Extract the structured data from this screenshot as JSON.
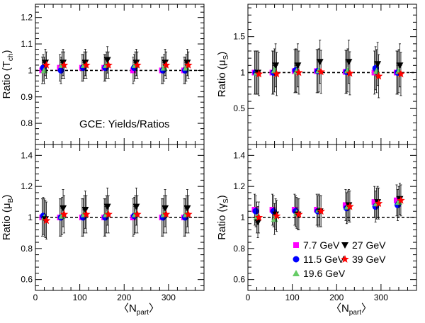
{
  "colors": {
    "7.7 GeV": "#ff00ff",
    "11.5 GeV": "#0000ff",
    "19.6 GeV": "#66cc66",
    "27 GeV": "#000000",
    "39 GeV": "#ff0000"
  },
  "legend": [
    {
      "label": "7.7 GeV",
      "marker": "square",
      "color": "#ff00ff"
    },
    {
      "label": "27 GeV",
      "marker": "triangle-down",
      "color": "#000000"
    },
    {
      "label": "11.5 GeV",
      "marker": "circle",
      "color": "#0000ff"
    },
    {
      "label": "39 GeV",
      "marker": "star",
      "color": "#ff0000"
    },
    {
      "label": "19.6 GeV",
      "marker": "triangle-up",
      "color": "#66cc66"
    }
  ],
  "chart_data": [
    {
      "type": "scatter",
      "panel": "top-left",
      "ylabel": {
        "base": "Ratio (T",
        "sub": "ch",
        "close": ")"
      },
      "xlim": [
        0,
        380
      ],
      "ylim": [
        0.72,
        1.25
      ],
      "yticks": [
        "0.8",
        "0.9",
        "1",
        "1.1",
        "1.2"
      ],
      "ytick_values": [
        0.8,
        0.9,
        1.0,
        1.1,
        1.2
      ],
      "xticks": [],
      "reference_line": 1,
      "annotation": "GCE: Yields/Ratios",
      "x": [
        20,
        60,
        110,
        160,
        225,
        290,
        340
      ],
      "series": [
        {
          "name": "7.7 GeV",
          "marker": "square",
          "y": [
            1.0,
            1.01,
            1.01,
            1.01,
            1.0,
            1.0,
            1.0
          ],
          "err": [
            0.05,
            0.05,
            0.05,
            0.05,
            0.05,
            0.05,
            0.05
          ]
        },
        {
          "name": "11.5 GeV",
          "marker": "circle",
          "y": [
            1.01,
            1.0,
            1.01,
            1.01,
            1.01,
            1.0,
            1.0
          ],
          "err": [
            0.05,
            0.05,
            0.05,
            0.05,
            0.05,
            0.05,
            0.05
          ]
        },
        {
          "name": "19.6 GeV",
          "marker": "triangle-up",
          "y": [
            1.0,
            1.02,
            1.02,
            1.02,
            1.02,
            1.01,
            1.01
          ],
          "err": [
            0.05,
            0.05,
            0.05,
            0.05,
            0.05,
            0.05,
            0.05
          ]
        },
        {
          "name": "27 GeV",
          "marker": "triangle-down",
          "y": [
            1.03,
            1.03,
            1.03,
            1.04,
            1.03,
            1.03,
            1.03
          ],
          "err": [
            0.05,
            0.05,
            0.05,
            0.05,
            0.05,
            0.05,
            0.05
          ]
        },
        {
          "name": "39 GeV",
          "marker": "star",
          "y": [
            1.02,
            1.02,
            1.02,
            1.02,
            1.02,
            1.02,
            1.02
          ],
          "err": [
            0.05,
            0.05,
            0.05,
            0.05,
            0.05,
            0.05,
            0.05
          ]
        }
      ]
    },
    {
      "type": "scatter",
      "panel": "top-right",
      "ylabel": {
        "base": "Ratio (μ",
        "sub": "S",
        "close": ")"
      },
      "xlim": [
        0,
        380
      ],
      "ylim": [
        0.0,
        1.95
      ],
      "yticks": [
        "0.5",
        "1",
        "1.5"
      ],
      "ytick_values": [
        0.5,
        1.0,
        1.5
      ],
      "xticks": [],
      "reference_line": 1,
      "x": [
        20,
        60,
        110,
        160,
        225,
        290,
        340
      ],
      "series": [
        {
          "name": "7.7 GeV",
          "marker": "square",
          "y": [
            1.0,
            1.0,
            1.02,
            1.02,
            1.01,
            1.0,
            1.0
          ],
          "err": [
            0.3,
            0.3,
            0.3,
            0.3,
            0.3,
            0.3,
            0.3
          ]
        },
        {
          "name": "11.5 GeV",
          "marker": "circle",
          "y": [
            1.0,
            1.0,
            1.03,
            1.02,
            1.01,
            1.06,
            1.0
          ],
          "err": [
            0.3,
            0.3,
            0.3,
            0.3,
            0.3,
            0.3,
            0.3
          ]
        },
        {
          "name": "19.6 GeV",
          "marker": "triangle-up",
          "y": [
            1.0,
            1.03,
            1.02,
            1.03,
            1.03,
            1.02,
            1.02
          ],
          "err": [
            0.3,
            0.3,
            0.3,
            0.3,
            0.3,
            0.3,
            0.3
          ]
        },
        {
          "name": "27 GeV",
          "marker": "triangle-down",
          "y": [
            1.0,
            1.1,
            1.1,
            1.15,
            1.15,
            1.12,
            1.1
          ],
          "err": [
            0.3,
            0.3,
            0.3,
            0.3,
            0.3,
            0.3,
            0.3
          ]
        },
        {
          "name": "39 GeV",
          "marker": "star",
          "y": [
            0.98,
            0.98,
            1.0,
            1.01,
            0.99,
            0.95,
            0.98
          ],
          "err": [
            0.3,
            0.3,
            0.3,
            0.3,
            0.3,
            0.3,
            0.3
          ]
        }
      ]
    },
    {
      "type": "scatter",
      "panel": "bottom-left",
      "ylabel": {
        "base": "Ratio (μ",
        "sub": "B",
        "close": ")"
      },
      "xlabel": {
        "base": "〈N",
        "sub": "part",
        "close": "〉"
      },
      "xlim": [
        0,
        380
      ],
      "ylim": [
        0.53,
        1.47
      ],
      "yticks": [
        "0.6",
        "0.8",
        "1",
        "1.2",
        "1.4"
      ],
      "ytick_values": [
        0.6,
        0.8,
        1.0,
        1.2,
        1.4
      ],
      "xticks": [
        "0",
        "100",
        "200",
        "300"
      ],
      "xtick_values": [
        0,
        100,
        200,
        300
      ],
      "reference_line": 1,
      "x": [
        20,
        60,
        110,
        160,
        225,
        290,
        340
      ],
      "series": [
        {
          "name": "7.7 GeV",
          "marker": "square",
          "y": [
            1.0,
            1.0,
            1.0,
            1.0,
            1.0,
            1.0,
            1.0
          ],
          "err": [
            0.12,
            0.12,
            0.12,
            0.12,
            0.12,
            0.12,
            0.12
          ]
        },
        {
          "name": "11.5 GeV",
          "marker": "circle",
          "y": [
            1.01,
            1.0,
            1.0,
            1.0,
            1.01,
            1.0,
            1.0
          ],
          "err": [
            0.12,
            0.12,
            0.12,
            0.12,
            0.12,
            0.12,
            0.12
          ]
        },
        {
          "name": "19.6 GeV",
          "marker": "triangle-up",
          "y": [
            1.0,
            1.01,
            1.02,
            1.02,
            1.02,
            1.02,
            1.02
          ],
          "err": [
            0.12,
            0.12,
            0.12,
            0.12,
            0.12,
            0.12,
            0.12
          ]
        },
        {
          "name": "27 GeV",
          "marker": "triangle-down",
          "y": [
            0.99,
            1.06,
            1.05,
            1.07,
            1.07,
            1.06,
            1.06
          ],
          "err": [
            0.12,
            0.12,
            0.12,
            0.12,
            0.12,
            0.12,
            0.12
          ]
        },
        {
          "name": "39 GeV",
          "marker": "star",
          "y": [
            0.98,
            1.02,
            1.02,
            1.02,
            1.02,
            1.02,
            1.02
          ],
          "err": [
            0.12,
            0.12,
            0.12,
            0.12,
            0.12,
            0.12,
            0.12
          ]
        }
      ]
    },
    {
      "type": "scatter",
      "panel": "bottom-right",
      "ylabel": {
        "base": "Ratio (γ",
        "sub": "S",
        "close": ")"
      },
      "xlabel": {
        "base": "〈N",
        "sub": "part",
        "close": "〉"
      },
      "xlim": [
        0,
        380
      ],
      "ylim": [
        0.53,
        1.47
      ],
      "yticks": [
        "0.6",
        "0.8",
        "1",
        "1.2",
        "1.4"
      ],
      "ytick_values": [
        0.6,
        0.8,
        1.0,
        1.2,
        1.4
      ],
      "xticks": [
        "0",
        "100",
        "200",
        "300"
      ],
      "xtick_values": [
        0,
        100,
        200,
        300
      ],
      "reference_line": 1,
      "legend_position": "bottom-right",
      "x": [
        20,
        60,
        110,
        160,
        225,
        290,
        340
      ],
      "series": [
        {
          "name": "7.7 GeV",
          "marker": "square",
          "y": [
            1.05,
            1.05,
            1.05,
            1.05,
            1.08,
            1.1,
            1.11
          ],
          "err": [
            0.1,
            0.1,
            0.1,
            0.1,
            0.1,
            0.1,
            0.1
          ]
        },
        {
          "name": "11.5 GeV",
          "marker": "circle",
          "y": [
            1.04,
            1.04,
            1.04,
            1.04,
            1.06,
            1.07,
            1.08
          ],
          "err": [
            0.1,
            0.1,
            0.1,
            0.1,
            0.1,
            0.1,
            0.1
          ]
        },
        {
          "name": "19.6 GeV",
          "marker": "triangle-up",
          "y": [
            1.0,
            0.99,
            1.03,
            1.05,
            1.07,
            1.09,
            1.1
          ],
          "err": [
            0.1,
            0.1,
            0.1,
            0.1,
            0.1,
            0.1,
            0.1
          ]
        },
        {
          "name": "27 GeV",
          "marker": "triangle-down",
          "y": [
            0.97,
            1.02,
            1.02,
            1.04,
            1.08,
            1.1,
            1.12
          ],
          "err": [
            0.1,
            0.1,
            0.1,
            0.1,
            0.1,
            0.1,
            0.1
          ]
        },
        {
          "name": "39 GeV",
          "marker": "star",
          "y": [
            1.0,
            1.01,
            1.02,
            1.04,
            1.07,
            1.09,
            1.11
          ],
          "err": [
            0.1,
            0.1,
            0.1,
            0.1,
            0.1,
            0.1,
            0.1
          ]
        }
      ]
    }
  ]
}
